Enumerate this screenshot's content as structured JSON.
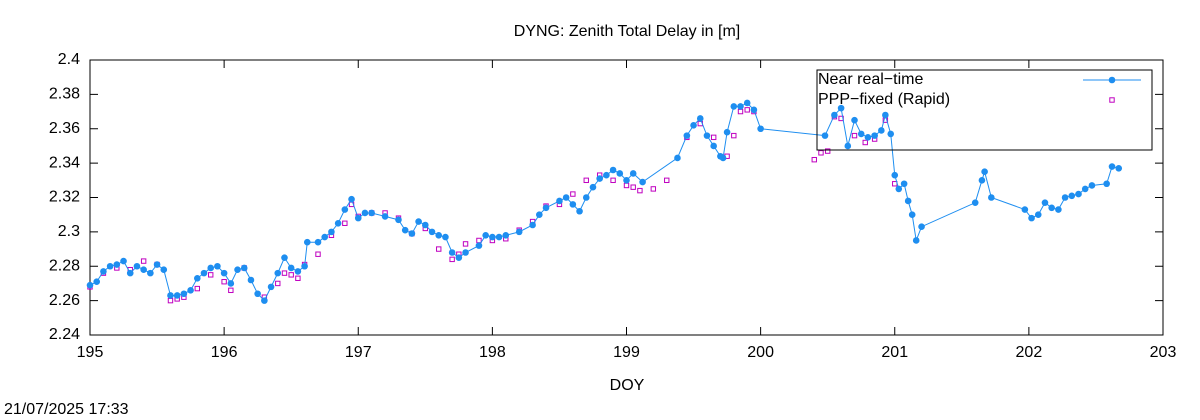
{
  "chart_data": {
    "type": "line",
    "title": "DYNG: Zenith Total Delay in [m]",
    "x_label": "DOY",
    "timestamp": "21/07/2025 17:33",
    "xlim": [
      195,
      203
    ],
    "xticks": [
      195,
      196,
      197,
      198,
      199,
      200,
      201,
      202,
      203
    ],
    "ylim": [
      2.24,
      2.4
    ],
    "yticks": [
      2.24,
      2.26,
      2.28,
      {
        "value": 2.3,
        "label": "2.3"
      },
      2.32,
      2.34,
      2.36,
      2.38,
      {
        "value": 2.4,
        "label": "2.4"
      }
    ],
    "legend": "upper right",
    "series": [
      {
        "name": "Near real−time",
        "color": "#1e8ef0",
        "marker": "circle",
        "line": true,
        "x": [
          195.0,
          195.05,
          195.1,
          195.15,
          195.2,
          195.25,
          195.3,
          195.35,
          195.4,
          195.45,
          195.5,
          195.55,
          195.6,
          195.65,
          195.7,
          195.75,
          195.8,
          195.85,
          195.9,
          195.95,
          196.0,
          196.05,
          196.1,
          196.15,
          196.2,
          196.25,
          196.3,
          196.35,
          196.4,
          196.45,
          196.5,
          196.55,
          196.6,
          196.62,
          196.7,
          196.75,
          196.8,
          196.85,
          196.9,
          196.95,
          197.0,
          197.05,
          197.1,
          197.2,
          197.3,
          197.35,
          197.4,
          197.45,
          197.5,
          197.55,
          197.6,
          197.65,
          197.7,
          197.75,
          197.8,
          197.9,
          197.95,
          198.0,
          198.05,
          198.1,
          198.2,
          198.3,
          198.35,
          198.4,
          198.5,
          198.55,
          198.6,
          198.65,
          198.7,
          198.75,
          198.8,
          198.85,
          198.9,
          198.95,
          199.0,
          199.05,
          199.12,
          199.38,
          199.45,
          199.5,
          199.55,
          199.6,
          199.65,
          199.7,
          199.72,
          199.75,
          199.8,
          199.85,
          199.9,
          199.95,
          200.0,
          200.48,
          200.55,
          200.6,
          200.65,
          200.7,
          200.75,
          200.8,
          200.85,
          200.9,
          200.93,
          200.97,
          201.0,
          201.03,
          201.07,
          201.1,
          201.13,
          201.16,
          201.2,
          201.6,
          201.65,
          201.67,
          201.72,
          201.97,
          202.02,
          202.07,
          202.12,
          202.17,
          202.22,
          202.27,
          202.32,
          202.37,
          202.42,
          202.47,
          202.58,
          202.62,
          202.67
        ],
        "values": [
          2.269,
          2.271,
          2.277,
          2.28,
          2.281,
          2.283,
          2.276,
          2.28,
          2.278,
          2.276,
          2.281,
          2.278,
          2.263,
          2.263,
          2.264,
          2.266,
          2.273,
          2.276,
          2.279,
          2.28,
          2.276,
          2.27,
          2.278,
          2.279,
          2.272,
          2.264,
          2.26,
          2.268,
          2.276,
          2.285,
          2.279,
          2.277,
          2.28,
          2.294,
          2.294,
          2.297,
          2.3,
          2.305,
          2.313,
          2.319,
          2.308,
          2.311,
          2.311,
          2.309,
          2.307,
          2.301,
          2.299,
          2.306,
          2.304,
          2.3,
          2.298,
          2.297,
          2.288,
          2.285,
          2.288,
          2.292,
          2.298,
          2.297,
          2.297,
          2.298,
          2.3,
          2.304,
          2.31,
          2.314,
          2.318,
          2.32,
          2.316,
          2.312,
          2.32,
          2.326,
          2.331,
          2.333,
          2.336,
          2.334,
          2.33,
          2.334,
          2.329,
          2.343,
          2.356,
          2.362,
          2.366,
          2.356,
          2.35,
          2.344,
          2.343,
          2.358,
          2.373,
          2.373,
          2.375,
          2.371,
          2.36,
          2.356,
          2.368,
          2.372,
          2.35,
          2.365,
          2.357,
          2.355,
          2.356,
          2.359,
          2.368,
          2.357,
          2.333,
          2.325,
          2.328,
          2.318,
          2.31,
          2.295,
          2.303,
          2.317,
          2.33,
          2.335,
          2.32,
          2.313,
          2.308,
          2.31,
          2.317,
          2.314,
          2.313,
          2.32,
          2.321,
          2.322,
          2.325,
          2.327,
          2.328,
          2.338,
          2.337
        ]
      },
      {
        "name": "PPP−fixed (Rapid)",
        "color": "#c000c0",
        "marker": "square",
        "line": false,
        "x": [
          195.0,
          195.1,
          195.2,
          195.3,
          195.4,
          195.5,
          195.6,
          195.65,
          195.7,
          195.8,
          195.9,
          196.0,
          196.05,
          196.15,
          196.3,
          196.4,
          196.45,
          196.5,
          196.55,
          196.6,
          196.7,
          196.8,
          196.9,
          196.95,
          197.0,
          197.1,
          197.2,
          197.3,
          197.4,
          197.5,
          197.6,
          197.7,
          197.75,
          197.8,
          197.9,
          198.0,
          198.1,
          198.2,
          198.3,
          198.4,
          198.5,
          198.6,
          198.7,
          198.8,
          198.9,
          199.0,
          199.05,
          199.1,
          199.2,
          199.3,
          199.45,
          199.55,
          199.65,
          199.75,
          199.8,
          199.85,
          199.9,
          199.95,
          200.4,
          200.45,
          200.5,
          200.55,
          200.6,
          200.7,
          200.78,
          200.85,
          200.93,
          201.0
        ],
        "values": [
          2.268,
          2.276,
          2.279,
          2.278,
          2.283,
          2.281,
          2.26,
          2.261,
          2.262,
          2.267,
          2.275,
          2.271,
          2.266,
          2.279,
          2.262,
          2.27,
          2.276,
          2.275,
          2.273,
          2.281,
          2.287,
          2.298,
          2.305,
          2.316,
          2.309,
          2.311,
          2.311,
          2.308,
          2.299,
          2.302,
          2.29,
          2.284,
          2.287,
          2.293,
          2.295,
          2.295,
          2.296,
          2.301,
          2.306,
          2.315,
          2.316,
          2.322,
          2.33,
          2.333,
          2.33,
          2.327,
          2.326,
          2.324,
          2.325,
          2.33,
          2.355,
          2.363,
          2.355,
          2.344,
          2.356,
          2.37,
          2.371,
          2.37,
          2.342,
          2.346,
          2.347,
          2.367,
          2.366,
          2.356,
          2.352,
          2.354,
          2.365,
          2.328
        ]
      }
    ]
  }
}
